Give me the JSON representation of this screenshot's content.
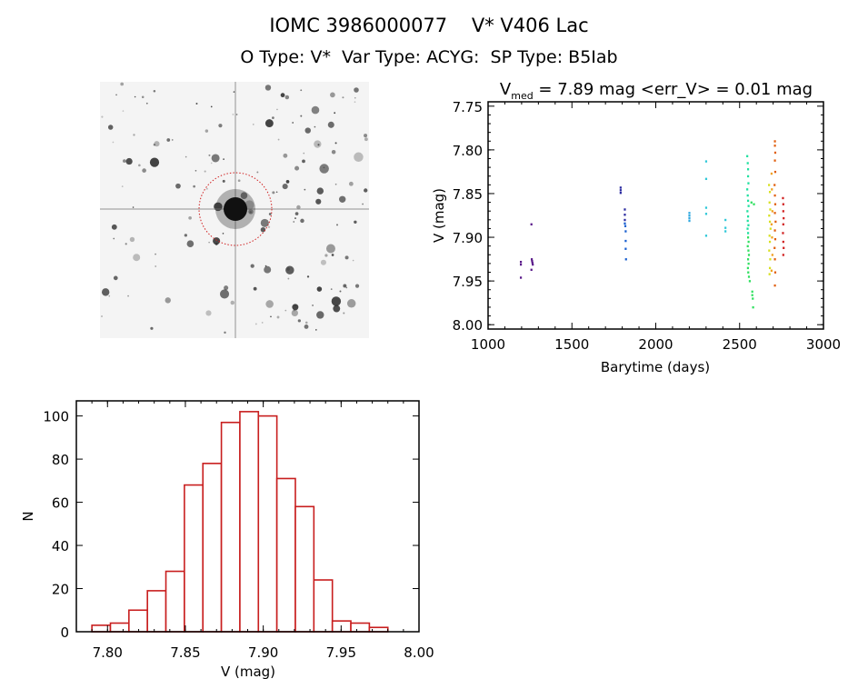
{
  "header": {
    "title": "IOMC 3986000077    V* V406 Lac",
    "subtitle": "O Type: V*  Var Type: ACYG:  SP Type: B5Iab"
  },
  "finder_image": {
    "description_icon": "star-field-image",
    "marker_color": "#d02020"
  },
  "chart_data": [
    {
      "type": "scatter",
      "title_main": "V",
      "title_sub": "med",
      "title_rest": " = 7.89 mag <err_V> = 0.01 mag",
      "xlabel": "Barytime (days)",
      "ylabel": "V (mag)",
      "xlim": [
        1000,
        3000
      ],
      "ylim": [
        7.745,
        8.005
      ],
      "y_inverted": true,
      "xticks": [
        "1000",
        "1500",
        "2000",
        "2500",
        "3000"
      ],
      "yticks": [
        "7.75",
        "7.80",
        "7.85",
        "7.90",
        "7.95",
        "8.00"
      ],
      "grid": false,
      "series": [
        {
          "color": "#5a1a8a",
          "x": [
            1195,
            1195,
            1195,
            1258,
            1260,
            1262,
            1264,
            1266,
            1258
          ],
          "y": [
            7.928,
            7.931,
            7.946,
            7.885,
            7.925,
            7.927,
            7.929,
            7.931,
            7.937
          ]
        },
        {
          "color": "#2a2aa0",
          "x": [
            1790,
            1790,
            1790,
            1815,
            1815,
            1815
          ],
          "y": [
            7.843,
            7.846,
            7.849,
            7.868,
            7.874,
            7.88
          ]
        },
        {
          "color": "#1a60d0",
          "x": [
            1815,
            1818,
            1820,
            1820,
            1820,
            1822
          ],
          "y": [
            7.884,
            7.887,
            7.893,
            7.904,
            7.913,
            7.925
          ]
        },
        {
          "color": "#30a8e0",
          "x": [
            2200,
            2200,
            2200,
            2200
          ],
          "y": [
            7.872,
            7.875,
            7.878,
            7.881
          ]
        },
        {
          "color": "#30c8d8",
          "x": [
            2300,
            2300,
            2300,
            2300,
            2300,
            2415,
            2415,
            2415
          ],
          "y": [
            7.813,
            7.833,
            7.866,
            7.873,
            7.898,
            7.88,
            7.889,
            7.893
          ]
        },
        {
          "color": "#20e0a0",
          "x": [
            2545,
            2548,
            2550,
            2550,
            2552,
            2545,
            2548,
            2550,
            2553,
            2546,
            2550,
            2548,
            2552,
            2547,
            2550
          ],
          "y": [
            7.807,
            7.815,
            7.822,
            7.83,
            7.838,
            7.845,
            7.852,
            7.858,
            7.864,
            7.87,
            7.876,
            7.881,
            7.886,
            7.89,
            7.895
          ]
        },
        {
          "color": "#30e060",
          "x": [
            2550,
            2553,
            2548,
            2552,
            2555,
            2550,
            2553,
            2549,
            2551,
            2555,
            2560,
            2575,
            2575,
            2578,
            2580,
            2570,
            2585
          ],
          "y": [
            7.9,
            7.905,
            7.91,
            7.915,
            7.92,
            7.925,
            7.93,
            7.935,
            7.94,
            7.945,
            7.95,
            7.962,
            7.966,
            7.97,
            7.98,
            7.86,
            7.862
          ]
        },
        {
          "color": "#d8e020",
          "x": [
            2675,
            2680,
            2678,
            2682,
            2676,
            2680,
            2684,
            2678,
            2680,
            2676,
            2682,
            2680,
            2678
          ],
          "y": [
            7.84,
            7.848,
            7.86,
            7.868,
            7.875,
            7.882,
            7.89,
            7.898,
            7.905,
            7.915,
            7.925,
            7.935,
            7.942
          ]
        },
        {
          "color": "#f0a020",
          "x": [
            2690,
            2692,
            2695,
            2690,
            2693,
            2695,
            2690
          ],
          "y": [
            7.827,
            7.845,
            7.87,
            7.885,
            7.9,
            7.92,
            7.938
          ]
        },
        {
          "color": "#e06010",
          "x": [
            2710,
            2710,
            2712,
            2710,
            2712,
            2708,
            2710,
            2712,
            2710,
            2714,
            2710,
            2712,
            2708,
            2710,
            2712,
            2710
          ],
          "y": [
            7.79,
            7.795,
            7.803,
            7.812,
            7.825,
            7.84,
            7.852,
            7.862,
            7.872,
            7.882,
            7.892,
            7.902,
            7.912,
            7.925,
            7.94,
            7.955
          ]
        },
        {
          "color": "#d02020",
          "x": [
            2758,
            2760,
            2760,
            2762,
            2760,
            2758,
            2760,
            2762,
            2760
          ],
          "y": [
            7.855,
            7.862,
            7.87,
            7.878,
            7.885,
            7.895,
            7.905,
            7.912,
            7.92
          ]
        }
      ]
    },
    {
      "type": "bar",
      "subtype": "histogram",
      "xlabel": "V (mag)",
      "ylabel": "N",
      "xlim": [
        7.78,
        8.0
      ],
      "ylim": [
        0,
        107
      ],
      "xticks": [
        "7.80",
        "7.85",
        "7.90",
        "7.95",
        "8.00"
      ],
      "yticks": [
        "0",
        "20",
        "40",
        "60",
        "80",
        "100"
      ],
      "bin_start": 7.79,
      "bin_width": 0.011875,
      "values": [
        3,
        4,
        10,
        19,
        28,
        68,
        78,
        97,
        102,
        100,
        71,
        58,
        24,
        5,
        4,
        2
      ],
      "bar_color": "#c81e1e",
      "grid": false
    }
  ]
}
